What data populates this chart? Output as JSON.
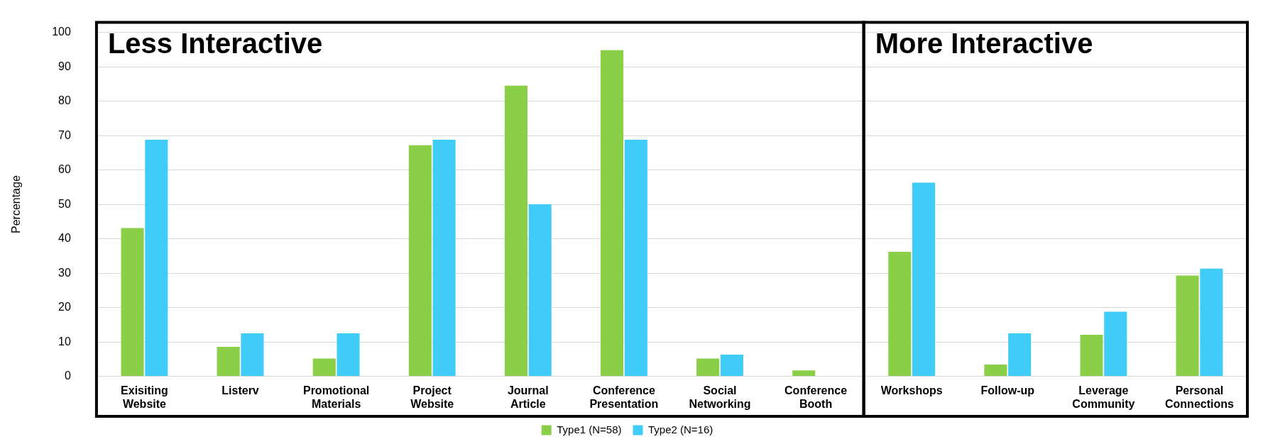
{
  "chart_data": {
    "type": "bar",
    "ylabel": "Percentage",
    "categories": [
      "Exisiting Website",
      "Listerv",
      "Promotional Materials",
      "Project Website",
      "Journal Article",
      "Conference Presentation",
      "Social Networking",
      "Conference Booth",
      "Workshops",
      "Follow-up",
      "Leverage Community",
      "Personal Connections"
    ],
    "series": [
      {
        "name": "Type1 (N=58)",
        "color": "#8acf47",
        "values": [
          43.1,
          8.6,
          5.2,
          67.2,
          84.5,
          94.8,
          5.2,
          1.7,
          36.2,
          3.4,
          12.1,
          29.3
        ]
      },
      {
        "name": "Type2 (N=16)",
        "color": "#3fcdf8",
        "values": [
          68.8,
          12.5,
          12.5,
          68.8,
          50,
          68.8,
          6.3,
          0,
          56.3,
          12.5,
          18.8,
          31.3
        ]
      }
    ],
    "ylim": [
      0,
      100
    ],
    "yticks": [
      0,
      10,
      20,
      30,
      40,
      50,
      60,
      70,
      80,
      90,
      100
    ],
    "grid": "y",
    "legend": "bottom",
    "annotations": [
      "Less Interactive",
      "More Interactive"
    ]
  }
}
